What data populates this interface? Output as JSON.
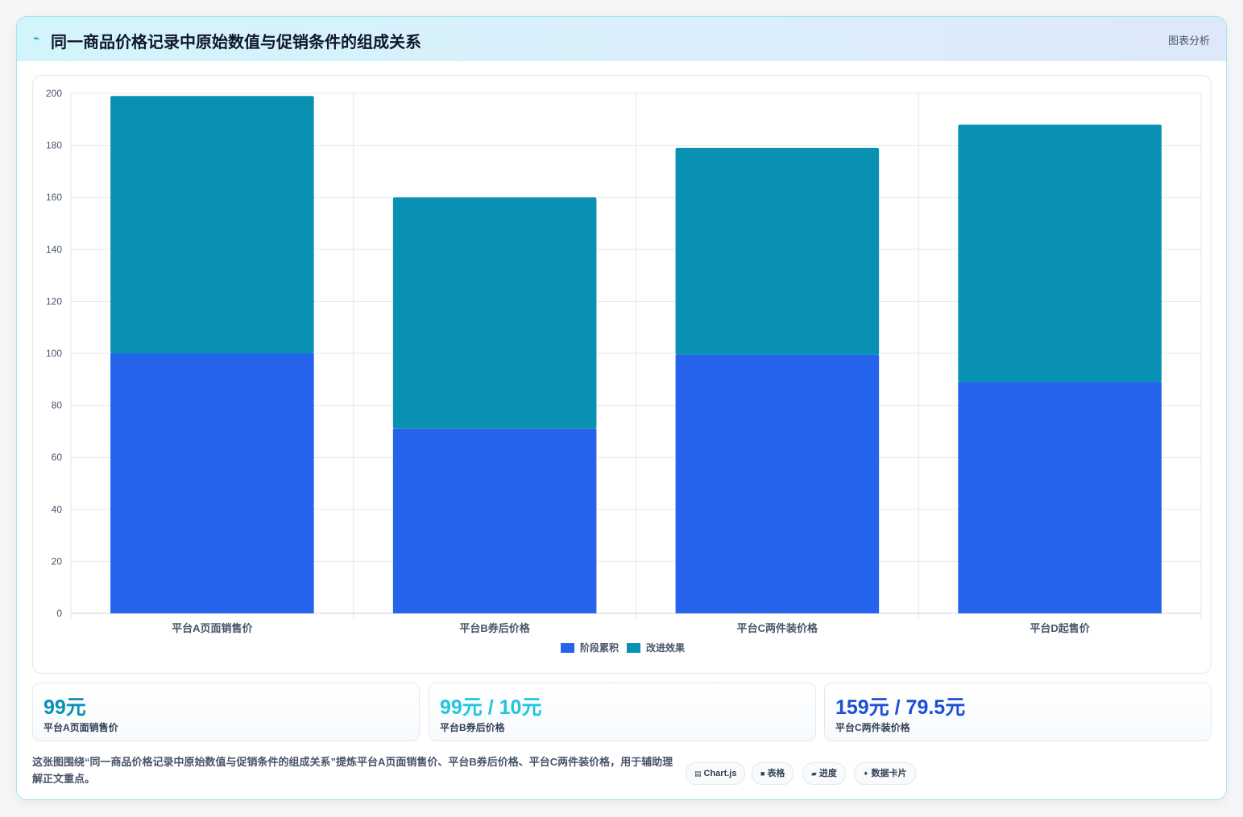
{
  "header": {
    "icon": "⌁",
    "title": "同一商品价格记录中原始数值与促销条件的组成关系",
    "tag": "图表分析"
  },
  "chart_data": {
    "type": "bar",
    "stacked": true,
    "categories": [
      "平台A页面销售价",
      "平台B券后价格",
      "平台C两件装价格",
      "平台D起售价"
    ],
    "series": [
      {
        "name": "阶段累积",
        "values": [
          100,
          71,
          99.5,
          89
        ],
        "color": "#2563eb"
      },
      {
        "name": "改进效果",
        "values": [
          99,
          89,
          79.5,
          99
        ],
        "color": "#0891b2"
      }
    ],
    "title": "",
    "xlabel": "",
    "ylabel": "",
    "ylim": [
      0,
      200
    ],
    "yticks": [
      0,
      20,
      40,
      60,
      80,
      100,
      120,
      140,
      160,
      180,
      200
    ],
    "grid": true,
    "legend_position": "bottom"
  },
  "stats": [
    {
      "value": "99元",
      "label": "平台A页面销售价",
      "color": "#0891b2"
    },
    {
      "value": "99元 / 10元",
      "label": "平台B券后价格",
      "color": "#22c5dd"
    },
    {
      "value": "159元 / 79.5元",
      "label": "平台C两件装价格",
      "color": "#1d4ed8"
    }
  ],
  "description": "这张图围绕“同一商品价格记录中原始数值与促销条件的组成关系”提炼平台A页面销售价、平台B券后价格、平台C两件装价格，用于辅助理解正文重点。",
  "chips": [
    {
      "icon": "▤",
      "label": "Chart.js"
    },
    {
      "icon": "■",
      "label": "表格"
    },
    {
      "icon": "▰",
      "label": "进度"
    },
    {
      "icon": "✦",
      "label": "数据卡片"
    }
  ]
}
